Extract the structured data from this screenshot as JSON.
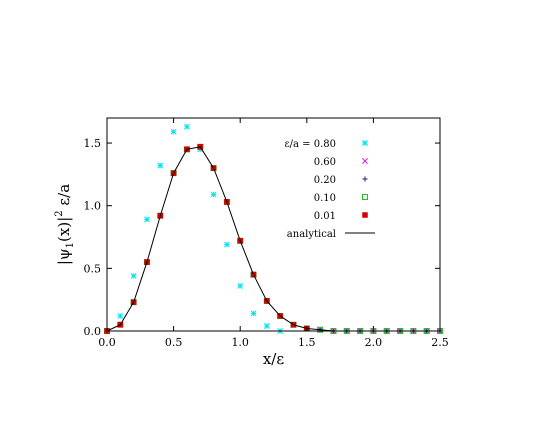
{
  "chart_data": {
    "type": "scatter",
    "xlabel": "x/ε",
    "ylabel": "|ψ",
    "ylabel_sub": "1",
    "ylabel_mid": "(x)|",
    "ylabel_sup": "2",
    "ylabel_tail": " ε/a",
    "xlim": [
      0.0,
      2.5
    ],
    "ylim": [
      0.0,
      1.7
    ],
    "x_ticks": [
      0.0,
      0.5,
      1.0,
      1.5,
      2.0,
      2.5
    ],
    "x_tick_labels": [
      "0.0",
      "0.5",
      "1.0",
      "1.5",
      "2.0",
      "2.5"
    ],
    "y_ticks": [
      0.0,
      0.5,
      1.0,
      1.5
    ],
    "y_tick_labels": [
      "0.0",
      "0.5",
      "1.0",
      "1.5"
    ],
    "legend_title": "ε/a = ",
    "legend_position": "top-right",
    "grid": false,
    "series": [
      {
        "name": "0.80",
        "marker": "asterisk",
        "color": "#00e5ee",
        "x": [
          0.0,
          0.1,
          0.2,
          0.3,
          0.4,
          0.5,
          0.6,
          0.7,
          0.8,
          0.9,
          1.0,
          1.1,
          1.2,
          1.3
        ],
        "y": [
          0.0,
          0.12,
          0.44,
          0.89,
          1.32,
          1.59,
          1.63,
          1.45,
          1.09,
          0.69,
          0.36,
          0.14,
          0.04,
          0.0
        ]
      },
      {
        "name": "0.60",
        "marker": "x",
        "color": "#d81bd8",
        "x": [
          0.0,
          0.1,
          0.2,
          0.3,
          0.4,
          0.5,
          0.6,
          0.7,
          0.8,
          0.9,
          1.0,
          1.1,
          1.2,
          1.3,
          1.4,
          1.5,
          1.6,
          1.7,
          1.8,
          1.9,
          2.0,
          2.1,
          2.2,
          2.3,
          2.4,
          2.5
        ],
        "y": [
          0.0,
          0.05,
          0.23,
          0.55,
          0.92,
          1.26,
          1.45,
          1.47,
          1.3,
          1.03,
          0.72,
          0.45,
          0.24,
          0.12,
          0.05,
          0.02,
          0.01,
          0.0,
          0.0,
          0.0,
          0.0,
          0.0,
          0.0,
          0.0,
          0.0,
          0.0
        ]
      },
      {
        "name": "0.20",
        "marker": "plus",
        "color": "#1a237e",
        "x": [
          0.0,
          0.1,
          0.2,
          0.3,
          0.4,
          0.5,
          0.6,
          0.7,
          0.8,
          0.9,
          1.0,
          1.1,
          1.2,
          1.3,
          1.4,
          1.5,
          1.6,
          1.7,
          1.8,
          1.9,
          2.0,
          2.1,
          2.2,
          2.3,
          2.4,
          2.5
        ],
        "y": [
          0.0,
          0.05,
          0.23,
          0.55,
          0.92,
          1.26,
          1.45,
          1.47,
          1.3,
          1.03,
          0.72,
          0.45,
          0.24,
          0.12,
          0.05,
          0.02,
          0.01,
          0.0,
          0.0,
          0.0,
          0.0,
          0.0,
          0.0,
          0.0,
          0.0,
          0.0
        ]
      },
      {
        "name": "0.10",
        "marker": "open-square",
        "color": "#22c122",
        "x": [
          0.0,
          0.1,
          0.2,
          0.3,
          0.4,
          0.5,
          0.6,
          0.7,
          0.8,
          0.9,
          1.0,
          1.1,
          1.2,
          1.3,
          1.4,
          1.5,
          1.6,
          1.7,
          1.8,
          1.9,
          2.0,
          2.1,
          2.2,
          2.3,
          2.4,
          2.5
        ],
        "y": [
          0.0,
          0.05,
          0.23,
          0.55,
          0.92,
          1.26,
          1.45,
          1.47,
          1.3,
          1.03,
          0.72,
          0.45,
          0.24,
          0.12,
          0.05,
          0.02,
          0.01,
          0.0,
          0.0,
          0.0,
          0.0,
          0.0,
          0.0,
          0.0,
          0.0,
          0.0
        ]
      },
      {
        "name": "0.01",
        "marker": "filled-square",
        "color": "#d60000",
        "x": [
          0.0,
          0.1,
          0.2,
          0.3,
          0.4,
          0.5,
          0.6,
          0.7,
          0.8,
          0.9,
          1.0,
          1.1,
          1.2,
          1.3,
          1.4,
          1.5
        ],
        "y": [
          0.0,
          0.05,
          0.23,
          0.55,
          0.92,
          1.26,
          1.45,
          1.47,
          1.3,
          1.03,
          0.72,
          0.45,
          0.24,
          0.12,
          0.05,
          0.02
        ]
      },
      {
        "name": "analytical",
        "marker": "line",
        "color": "#000000",
        "x": [
          0.0,
          0.1,
          0.2,
          0.3,
          0.4,
          0.5,
          0.6,
          0.7,
          0.8,
          0.9,
          1.0,
          1.1,
          1.2,
          1.3,
          1.4,
          1.5,
          1.6,
          1.7,
          1.8,
          1.9,
          2.0,
          2.5
        ],
        "y": [
          0.0,
          0.05,
          0.23,
          0.55,
          0.92,
          1.26,
          1.45,
          1.47,
          1.3,
          1.03,
          0.72,
          0.45,
          0.24,
          0.12,
          0.05,
          0.02,
          0.01,
          0.0,
          0.0,
          0.0,
          0.0,
          0.0
        ]
      }
    ]
  }
}
